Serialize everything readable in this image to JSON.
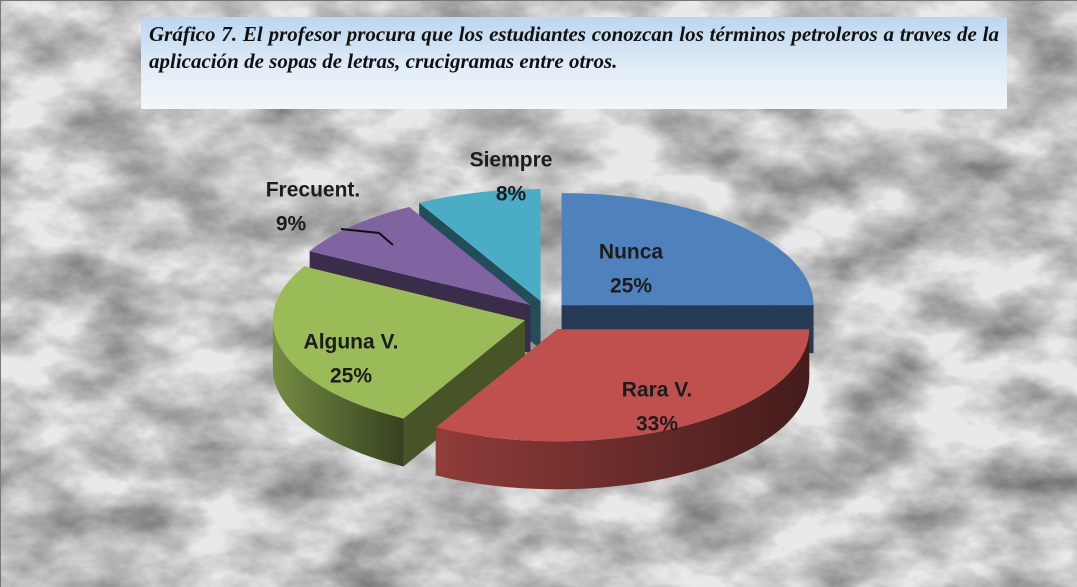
{
  "chart_data": {
    "type": "pie3d",
    "title": "Gráfico 7. El profesor procura que los estudiantes conozcan los términos petroleros a traves de la aplicación de sopas de letras, crucigramas entre otros.",
    "categories": [
      "Nunca",
      "Rara V.",
      "Alguna V.",
      "Frecuent.",
      "Siempre"
    ],
    "values": [
      25,
      33,
      25,
      9,
      8
    ],
    "value_labels": [
      "25%",
      "33%",
      "25%",
      "9%",
      "8%"
    ],
    "colors": [
      "#4f81bd",
      "#c0504d",
      "#9bbb59",
      "#8064a2",
      "#4bacc6"
    ]
  }
}
